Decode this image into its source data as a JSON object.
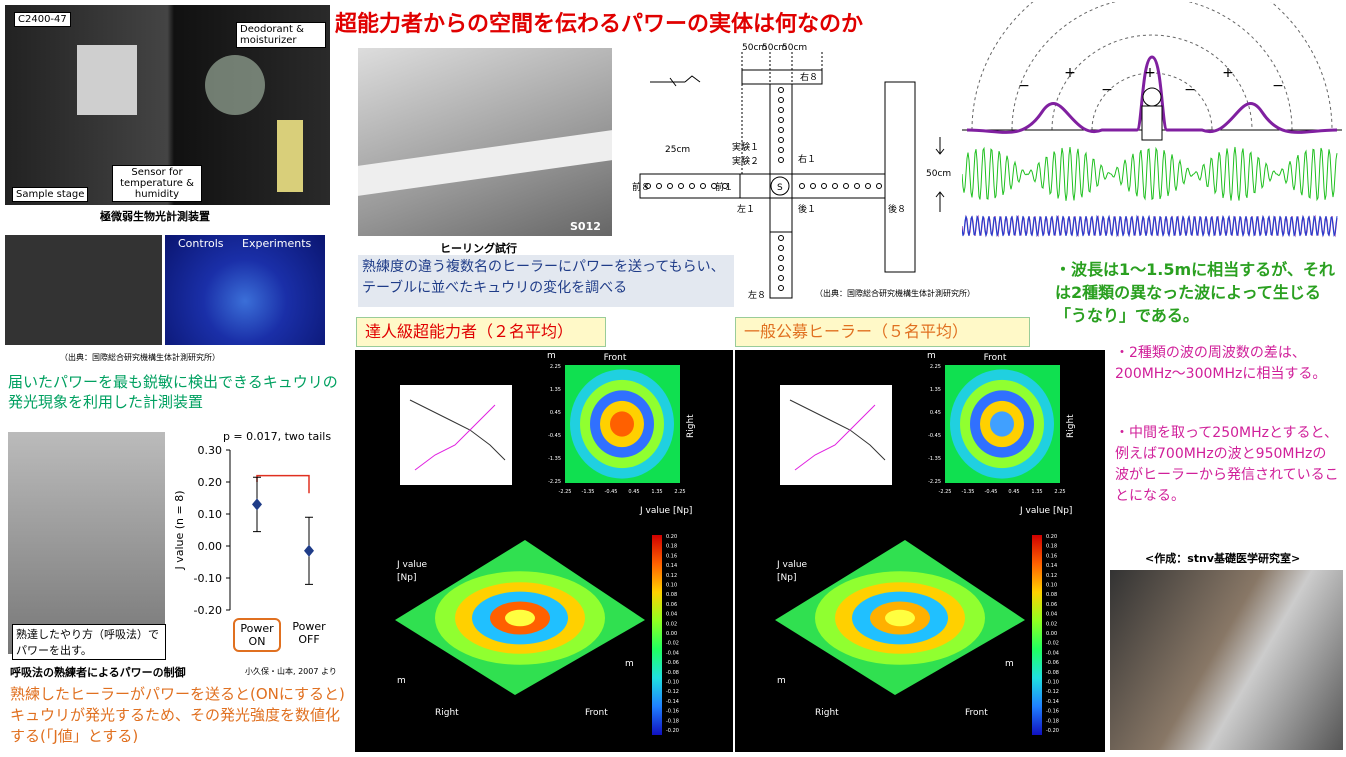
{
  "title": "超能力者からの空間を伝わるパワーの実体は何なのか",
  "apparatus": {
    "labels": [
      "C2400-47",
      "Deodorant & moisturizer",
      "Sample stage",
      "Sensor for temperature & humidity"
    ],
    "caption": "極微弱生物光計測装置"
  },
  "luminescence": {
    "labels": [
      "Controls",
      "Experiments"
    ],
    "source": "（出典：国際総合研究機構生体計測研究所）"
  },
  "device_note": "届いたパワーを最も鋭敏に検出できるキュウリの発光現象を利用した計測装置",
  "breathing_photo_caption": "熟達したやり方（呼吸法）でパワーを出す。",
  "j_value_chart": {
    "type": "errorbar",
    "title": "p = 0.017, two tails",
    "ylabel": "J value (n = 8)",
    "categories": [
      "Power ON",
      "Power OFF"
    ],
    "values": [
      0.13,
      -0.015
    ],
    "errors": [
      0.085,
      0.105
    ],
    "color": "#1f3c88",
    "ylim": [
      -0.2,
      0.3
    ],
    "yticks": [
      {
        "value": 0.3,
        "label": "0.30"
      },
      {
        "value": 0.2,
        "label": "0.20"
      },
      {
        "value": 0.1,
        "label": "0.10"
      },
      {
        "value": 0,
        "label": "0.00"
      },
      {
        "value": -0.1,
        "label": "-0.10"
      },
      {
        "value": -0.2,
        "label": "-0.20"
      }
    ]
  },
  "control_caption": "呼吸法の熟練者によるパワーの制御",
  "control_reference": "小久保・山本, 2007 より",
  "j_value_note": "熟練したヒーラーがパワーを送ると(ONにすると)キュウリが発光するため、その発光強度を数値化する(「J値」とする)",
  "healing_photo": {
    "code": "S012",
    "caption": "ヒーリング試行"
  },
  "method_note": "熟練度の違う複数名のヒーラーにパワーを送ってもらい、テーブルに並べたキュウリの変化を調べる",
  "layout_diagram": {
    "labels": [
      "50cm",
      "50cm",
      "50cm",
      "右８",
      "実験１",
      "実験２",
      "右１",
      "25cm",
      "前８",
      "前１",
      "左１",
      "S",
      "後１",
      "後８",
      "50cm",
      "左８"
    ],
    "source": "（出典：国際総合研究機構生体計測研究所）"
  },
  "panels": [
    {
      "heading": "達人級超能力者（２名平均）"
    },
    {
      "heading": "一般公募ヒーラー（５名平均）"
    }
  ],
  "panel_texts": {
    "front": "Front",
    "right": "Right",
    "unit": "m",
    "colorbar_title": "J value [Np]",
    "z_label": "J value",
    "z_unit": "[Np]"
  },
  "heatmap_ticks": [
    "-2.25",
    "-1.35",
    "-0.45",
    "0.45",
    "1.35",
    "2.25"
  ],
  "colorbar_ticks": [
    "0.20",
    "0.18",
    "0.16",
    "0.14",
    "0.12",
    "0.10",
    "0.08",
    "0.06",
    "0.04",
    "0.02",
    "0.00",
    "-0.02",
    "-0.04",
    "-0.06",
    "-0.08",
    "-0.10",
    "-0.12",
    "-0.14",
    "-0.16",
    "-0.18",
    "-0.20"
  ],
  "wave_signs": [
    "−",
    "+",
    "−",
    "+",
    "−",
    "+",
    "−"
  ],
  "wave_note": "・波長は1〜1.5mに相当するが、それは2種類の異なった波によって生じる「うなり」である。",
  "frequency_notes": [
    "・2種類の波の周波数の差は、200MHz〜300MHzに相当する。",
    "・中間を取って250MHzとすると、例えば700MHzの波と950MHzの波がヒーラーから発信されていることになる。"
  ],
  "credit": "<作成：stnv基礎医学研究室>"
}
